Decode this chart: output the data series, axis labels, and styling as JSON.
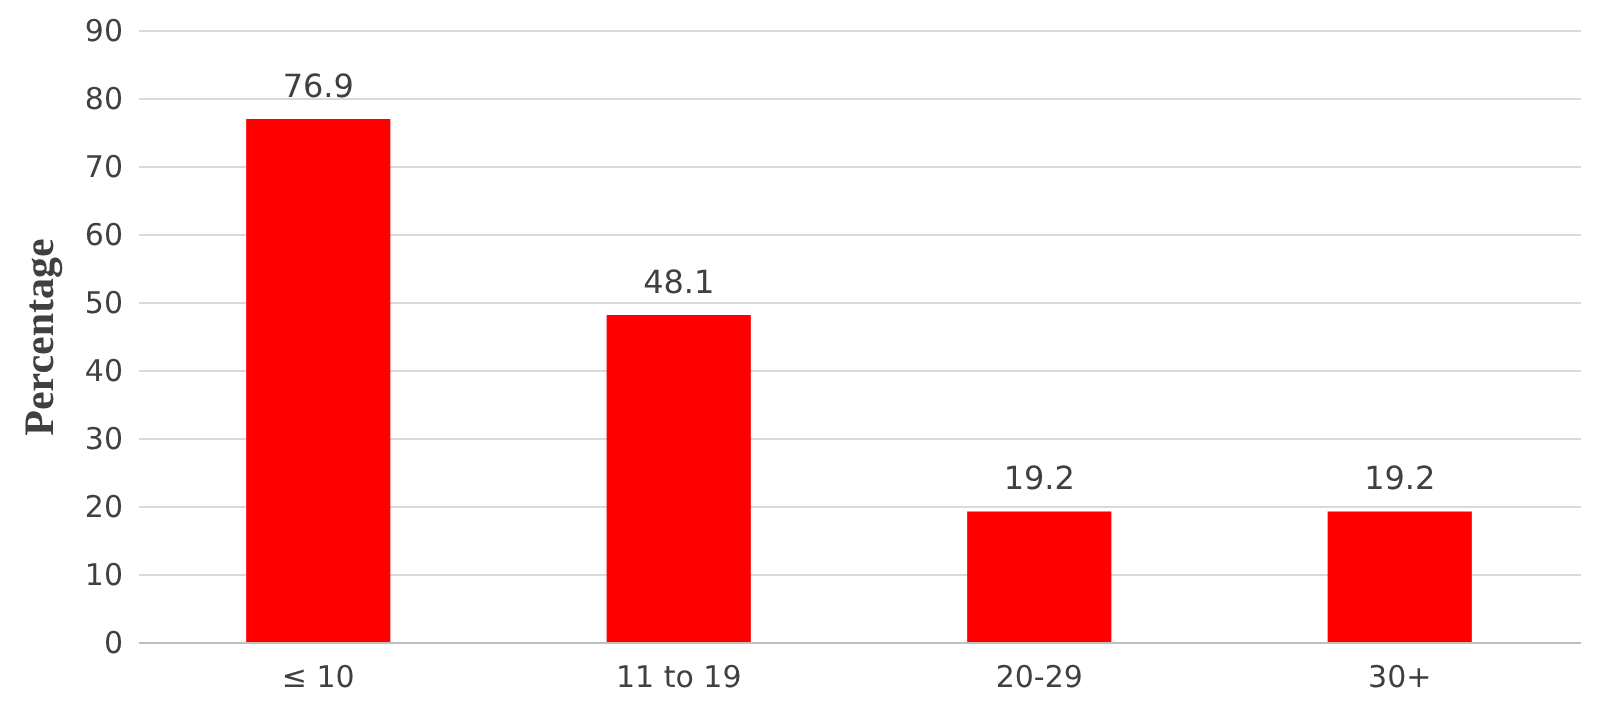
{
  "chart_data": {
    "type": "bar",
    "ylabel": "Percentage",
    "categories": [
      "≤ 10",
      "11 to 19",
      "20-29",
      "30+"
    ],
    "values": [
      76.9,
      48.1,
      19.2,
      19.2
    ],
    "color": "#ff0000",
    "ylim": [
      0,
      90
    ],
    "yticks": [
      0,
      10,
      20,
      30,
      40,
      50,
      60,
      70,
      80,
      90
    ],
    "grid": "y",
    "data_labels": true
  }
}
